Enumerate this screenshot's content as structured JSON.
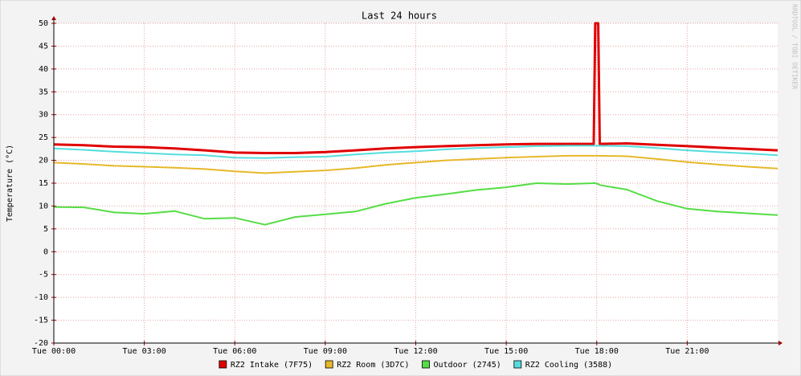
{
  "chart_data": {
    "type": "line",
    "title": "Last 24 hours",
    "y_label": "Temperature (°C)",
    "watermark": "RRDTOOL / TOBI OETIKER",
    "x": [
      0,
      1,
      2,
      3,
      4,
      5,
      6,
      7,
      8,
      9,
      10,
      11,
      12,
      13,
      14,
      15,
      16,
      17,
      17.9,
      17.95,
      18.05,
      18.1,
      19,
      20,
      21,
      22,
      23,
      24
    ],
    "xlim": [
      0,
      24
    ],
    "xticks": [
      {
        "value": 0,
        "label": "Tue 00:00"
      },
      {
        "value": 3,
        "label": "Tue 03:00"
      },
      {
        "value": 6,
        "label": "Tue 06:00"
      },
      {
        "value": 9,
        "label": "Tue 09:00"
      },
      {
        "value": 12,
        "label": "Tue 12:00"
      },
      {
        "value": 15,
        "label": "Tue 15:00"
      },
      {
        "value": 18,
        "label": "Tue 18:00"
      },
      {
        "value": 21,
        "label": "Tue 21:00"
      }
    ],
    "ylim": [
      -20,
      50
    ],
    "yticks": [
      -20,
      -15,
      -10,
      -5,
      0,
      5,
      10,
      15,
      20,
      25,
      30,
      35,
      40,
      45,
      50
    ],
    "grid": true,
    "legend": "bottom",
    "series": [
      {
        "name": "RZ2 Intake (7F75)",
        "color": "#e00000",
        "values": [
          23.5,
          23.3,
          23.0,
          22.9,
          22.6,
          22.2,
          21.7,
          21.6,
          21.6,
          21.8,
          22.2,
          22.6,
          22.9,
          23.1,
          23.3,
          23.5,
          23.6,
          23.6,
          23.6,
          50,
          50,
          23.6,
          23.7,
          23.4,
          23.1,
          22.8,
          22.5,
          22.2
        ]
      },
      {
        "name": "RZ2 Room (3D7C)",
        "color": "#e6b82a",
        "values": [
          19.5,
          19.2,
          18.8,
          18.6,
          18.4,
          18.1,
          17.6,
          17.2,
          17.5,
          17.8,
          18.3,
          19.0,
          19.5,
          20.0,
          20.3,
          20.6,
          20.8,
          21.0,
          21.0,
          21.0,
          21.0,
          21.0,
          20.9,
          20.3,
          19.6,
          19.1,
          18.6,
          18.2
        ]
      },
      {
        "name": "Outdoor (2745)",
        "color": "#55dd44",
        "values": [
          9.8,
          9.7,
          8.6,
          8.3,
          8.9,
          7.2,
          7.4,
          5.9,
          7.6,
          8.2,
          8.8,
          10.5,
          11.8,
          12.6,
          13.5,
          14.1,
          15.0,
          14.8,
          15.0,
          15.0,
          14.8,
          14.6,
          13.6,
          11.1,
          9.4,
          8.8,
          8.4,
          8.0
        ]
      },
      {
        "name": "RZ2 Cooling (3588)",
        "color": "#55dddd",
        "values": [
          22.6,
          22.3,
          21.9,
          21.6,
          21.3,
          21.1,
          20.6,
          20.5,
          20.7,
          20.8,
          21.3,
          21.7,
          22.0,
          22.4,
          22.7,
          22.9,
          23.1,
          23.2,
          23.2,
          23.2,
          23.2,
          23.2,
          23.1,
          22.7,
          22.2,
          21.8,
          21.5,
          21.1
        ]
      }
    ]
  }
}
